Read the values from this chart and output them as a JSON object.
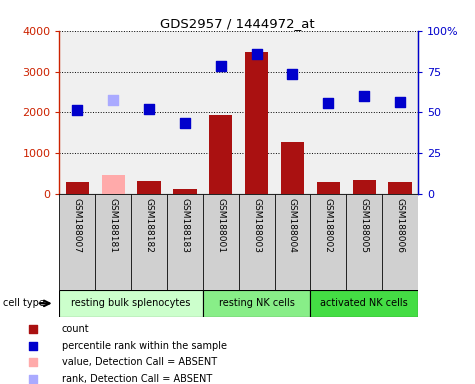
{
  "title": "GDS2957 / 1444972_at",
  "samples": [
    "GSM188007",
    "GSM188181",
    "GSM188182",
    "GSM188183",
    "GSM188001",
    "GSM188003",
    "GSM188004",
    "GSM188002",
    "GSM188005",
    "GSM188006"
  ],
  "count_values": [
    280,
    470,
    320,
    130,
    1940,
    3490,
    1270,
    290,
    330,
    290
  ],
  "count_absent": [
    false,
    true,
    false,
    false,
    false,
    false,
    false,
    false,
    false,
    false
  ],
  "rank_values": [
    2050,
    2310,
    2090,
    1740,
    3140,
    3430,
    2940,
    2230,
    2390,
    2260
  ],
  "rank_absent": [
    false,
    true,
    false,
    false,
    false,
    false,
    false,
    false,
    false,
    false
  ],
  "groups": [
    {
      "label": "resting bulk splenocytes",
      "start": 0,
      "end": 4
    },
    {
      "label": "resting NK cells",
      "start": 4,
      "end": 7
    },
    {
      "label": "activated NK cells",
      "start": 7,
      "end": 10
    }
  ],
  "group_colors": [
    "#ccffcc",
    "#88ee88",
    "#44dd44"
  ],
  "cell_type_label": "cell type",
  "ylim_left": [
    0,
    4000
  ],
  "ylim_right": [
    0,
    100
  ],
  "yticks_left": [
    0,
    1000,
    2000,
    3000,
    4000
  ],
  "yticks_right": [
    0,
    25,
    50,
    75,
    100
  ],
  "ytick_labels_left": [
    "0",
    "1000",
    "2000",
    "3000",
    "4000"
  ],
  "ytick_labels_right": [
    "0",
    "25",
    "50",
    "75",
    "100%"
  ],
  "bar_color_present": "#aa1111",
  "bar_color_absent": "#ffaaaa",
  "rank_color_present": "#0000cc",
  "rank_color_absent": "#aaaaff",
  "legend_labels": [
    "count",
    "percentile rank within the sample",
    "value, Detection Call = ABSENT",
    "rank, Detection Call = ABSENT"
  ],
  "legend_colors": [
    "#aa1111",
    "#0000cc",
    "#ffaaaa",
    "#aaaaff"
  ],
  "bg_color": "#e0e0e0",
  "plot_bg": "#f0f0f0"
}
